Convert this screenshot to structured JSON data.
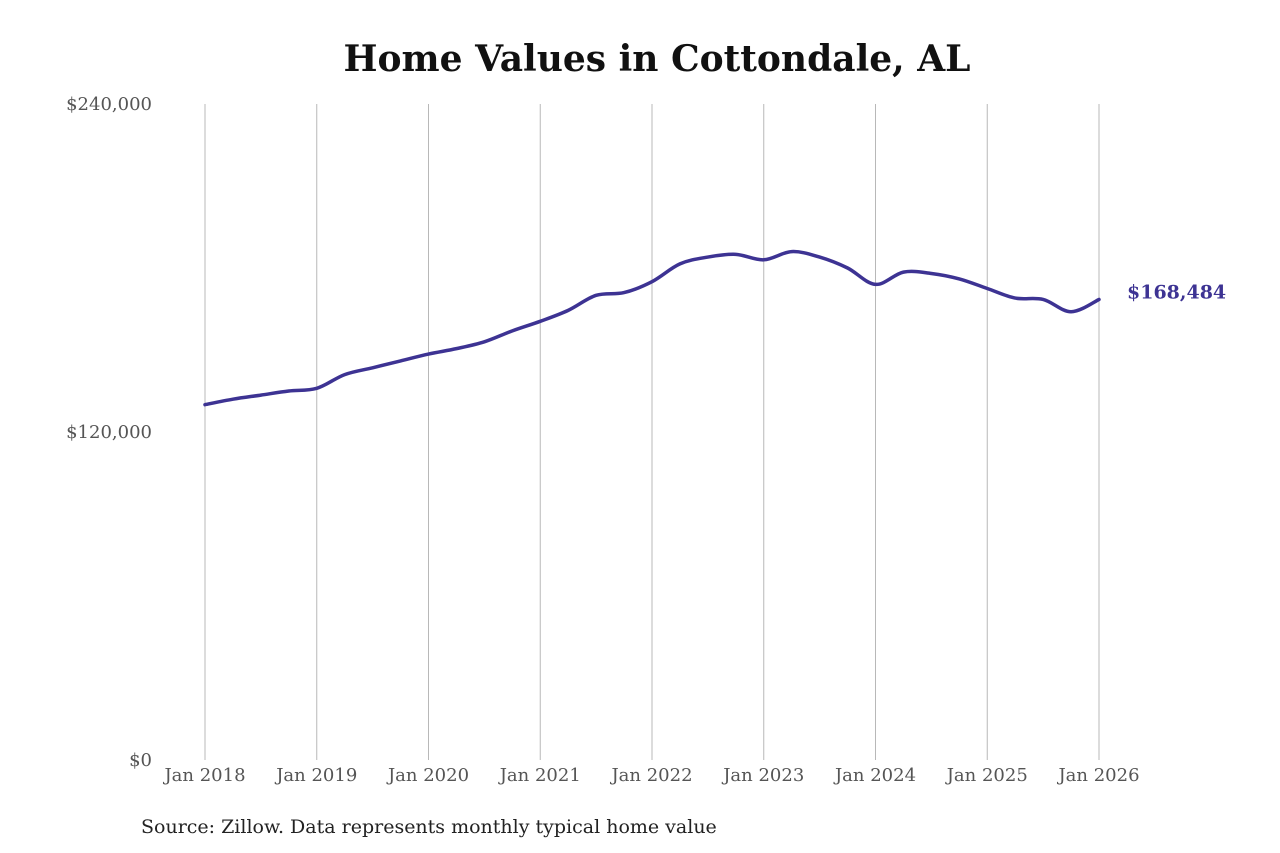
{
  "chart_data": {
    "type": "line",
    "title": "Home Values in Cottondale, AL",
    "source": "Source: Zillow. Data represents monthly typical home value",
    "ylim": [
      0,
      240000
    ],
    "y_ticks": [
      {
        "value": 0,
        "label": "$0"
      },
      {
        "value": 120000,
        "label": "$120,000"
      },
      {
        "value": 240000,
        "label": "$240,000"
      }
    ],
    "x_ticks": [
      "Jan 2018",
      "Jan 2019",
      "Jan 2020",
      "Jan 2021",
      "Jan 2022",
      "Jan 2023",
      "Jan 2024",
      "Jan 2025",
      "Jan 2026"
    ],
    "x_start": "2018-01",
    "grid": "vertical",
    "line_color": "#3d3393",
    "end_label": "$168,484",
    "series": [
      {
        "x": [
          "2018-01",
          "2018-04",
          "2018-07",
          "2018-10",
          "2019-01",
          "2019-04",
          "2019-07",
          "2019-10",
          "2020-01",
          "2020-04",
          "2020-07",
          "2020-10",
          "2021-01",
          "2021-04",
          "2021-07",
          "2021-10",
          "2022-01",
          "2022-04",
          "2022-07",
          "2022-10",
          "2023-01",
          "2023-04",
          "2023-07",
          "2023-10",
          "2024-01",
          "2024-04",
          "2024-07",
          "2024-10",
          "2025-01",
          "2025-04",
          "2025-07",
          "2025-10",
          "2026-01"
        ],
        "values": [
          130000,
          132000,
          133500,
          135000,
          136000,
          141000,
          143500,
          146000,
          148500,
          150500,
          153000,
          157000,
          160500,
          164500,
          170000,
          171000,
          175000,
          181500,
          184000,
          185000,
          183000,
          186000,
          184000,
          180000,
          174000,
          178500,
          178000,
          176000,
          172500,
          169000,
          168500,
          164000,
          168484
        ]
      }
    ]
  }
}
